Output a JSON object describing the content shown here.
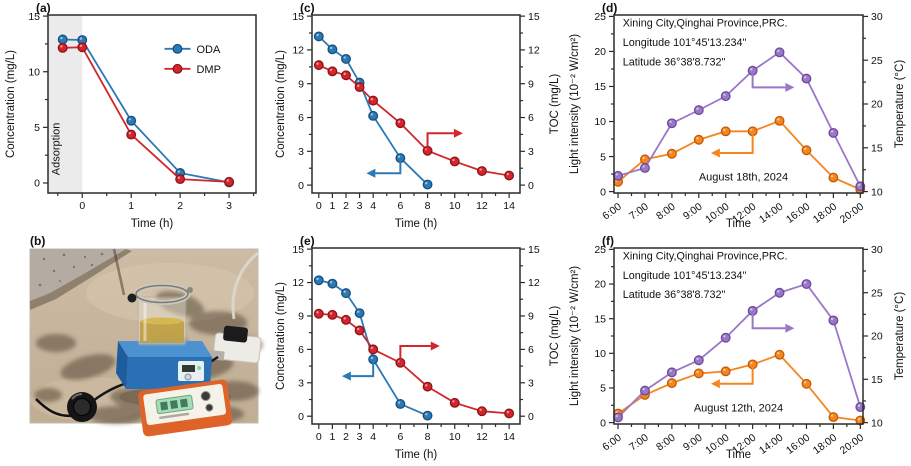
{
  "colors": {
    "blue": "#2b79b5",
    "blue_d": "#174f7c",
    "red": "#d3262c",
    "red_d": "#8c1318",
    "purple": "#9b77c8",
    "purple_d": "#6b4a9b",
    "orange": "#f5861f",
    "orange_d": "#c05c08",
    "axis": "#2b2b2b",
    "text": "#111111",
    "shade": "#ebebeb"
  },
  "photo": {
    "label": "(b)"
  },
  "chart_data": [
    {
      "id": "a",
      "type": "line",
      "panel_label": "(a)",
      "xlabel": "Time (h)",
      "ylabel": "Concentration (mg/L)",
      "xlim": [
        -0.7,
        3.55
      ],
      "ylim": [
        -0.9,
        15.1
      ],
      "margin": {
        "l": 46,
        "r": 14
      },
      "xticks": [
        {
          "v": 0,
          "l": "0"
        },
        {
          "v": 1,
          "l": "1"
        },
        {
          "v": 2,
          "l": "2"
        },
        {
          "v": 3,
          "l": "3"
        }
      ],
      "xminor": [
        -0.5,
        0.5,
        1.5,
        2.5,
        3.5
      ],
      "yticks": [
        0,
        5,
        10,
        15
      ],
      "yminor": [
        2.5,
        7.5,
        12.5
      ],
      "shade": {
        "from": -0.7,
        "to": 0
      },
      "texts": [
        {
          "fx": 0.055,
          "fy": 0.9,
          "text": "Adsorption",
          "rotate": -90,
          "anchor": "start",
          "size": 11
        }
      ],
      "legend": {
        "fx": 0.56,
        "fy": 0.19,
        "entries": [
          {
            "label": "ODA",
            "color": "blue"
          },
          {
            "label": "DMP",
            "color": "red"
          }
        ]
      },
      "series": [
        {
          "name": "ODA",
          "color": "blue",
          "axis": "left",
          "x": [
            -0.4,
            0,
            1,
            2,
            3
          ],
          "y": [
            12.9,
            12.85,
            5.6,
            0.9,
            0.05
          ]
        },
        {
          "name": "DMP",
          "color": "red",
          "axis": "left",
          "x": [
            -0.4,
            0,
            1,
            2,
            3
          ],
          "y": [
            12.15,
            12.2,
            4.35,
            0.35,
            0.1
          ]
        }
      ]
    },
    {
      "id": "c",
      "type": "line",
      "panel_label": "(c)",
      "xlabel": "Time (h)",
      "ylabel": "Concentration (mg/L)",
      "y2label": "TOC (mg/L)",
      "xlim": [
        -0.5,
        14.8
      ],
      "ylim": [
        -0.7,
        15.1
      ],
      "ylim2": [
        -0.7,
        15.1
      ],
      "margin": {
        "l": 40,
        "r": 44
      },
      "xticks": [
        {
          "v": 0,
          "l": "0"
        },
        {
          "v": 1,
          "l": "1"
        },
        {
          "v": 2,
          "l": "2"
        },
        {
          "v": 3,
          "l": "3"
        },
        {
          "v": 4,
          "l": "4"
        },
        {
          "v": 6,
          "l": "6"
        },
        {
          "v": 8,
          "l": "8"
        },
        {
          "v": 10,
          "l": "10"
        },
        {
          "v": 12,
          "l": "12"
        },
        {
          "v": 14,
          "l": "14"
        }
      ],
      "xminor": [
        5,
        7,
        9,
        11,
        13
      ],
      "yticks": [
        0,
        3,
        6,
        9,
        12,
        15
      ],
      "yminor": [
        1.5,
        4.5,
        7.5,
        10.5,
        13.5
      ],
      "y2ticks": [
        0,
        3,
        6,
        9,
        12,
        15
      ],
      "y2minor": [
        1.5,
        4.5,
        7.5,
        10.5,
        13.5
      ],
      "arrows": [
        {
          "color": "blue",
          "axis": "left",
          "pts": [
            [
              6,
              2.4
            ],
            [
              6,
              1.05
            ],
            [
              3.5,
              1.05
            ]
          ]
        },
        {
          "color": "red",
          "axis": "left",
          "pts": [
            [
              8,
              3.05
            ],
            [
              8,
              4.6
            ],
            [
              10.6,
              4.6
            ]
          ]
        }
      ],
      "series": [
        {
          "name": "Concentration",
          "color": "blue",
          "axis": "left",
          "x": [
            0,
            1,
            2,
            3,
            4,
            6,
            8
          ],
          "y": [
            13.2,
            12.05,
            11.2,
            9.1,
            6.15,
            2.4,
            0.05
          ]
        },
        {
          "name": "TOC",
          "color": "red",
          "axis": "right",
          "x": [
            0,
            1,
            2,
            3,
            4,
            6,
            8,
            10,
            12,
            14
          ],
          "y": [
            10.65,
            10.1,
            9.75,
            8.7,
            7.5,
            5.5,
            3.05,
            2.1,
            1.25,
            0.85
          ]
        }
      ]
    },
    {
      "id": "d",
      "type": "line",
      "panel_label": "(d)",
      "xlabel": "Time",
      "ylabel": "Light intensity (10⁻² W/cm²)",
      "y2label": "Temperature (°C)",
      "xlim": [
        -0.15,
        9.1
      ],
      "ylim": [
        -0.2,
        25.2
      ],
      "ylim2": [
        9.84,
        30.16
      ],
      "margin": {
        "l": 48,
        "r": 46
      },
      "rotate_xticks": true,
      "xticks": [
        {
          "v": 0,
          "l": "6:00"
        },
        {
          "v": 1,
          "l": "7:00"
        },
        {
          "v": 2,
          "l": "8:00"
        },
        {
          "v": 3,
          "l": "9:00"
        },
        {
          "v": 4,
          "l": "10:00"
        },
        {
          "v": 5,
          "l": "12:00"
        },
        {
          "v": 6,
          "l": "14:00"
        },
        {
          "v": 7,
          "l": "16:00"
        },
        {
          "v": 8,
          "l": "18:00"
        },
        {
          "v": 9,
          "l": "20:00"
        }
      ],
      "xminor": [
        0.5,
        1.5,
        2.5,
        3.5,
        4.5,
        5.5,
        6.5,
        7.5,
        8.5
      ],
      "yticks": [
        0,
        5,
        10,
        15,
        20,
        25
      ],
      "yminor": [
        2.5,
        7.5,
        12.5,
        17.5,
        22.5
      ],
      "y2ticks": [
        10,
        15,
        20,
        25,
        30
      ],
      "y2minor": [
        12.5,
        17.5,
        22.5,
        27.5
      ],
      "texts": [
        {
          "fx": 0.035,
          "fy": 0.065,
          "text": "Xining City,Qinghai Province,PRC.",
          "size": 10.8
        },
        {
          "fx": 0.035,
          "fy": 0.175,
          "text": "Longitude 101°45'13.234\"",
          "size": 10.8
        },
        {
          "fx": 0.035,
          "fy": 0.285,
          "text": "Latitude 36°38'8.732\"",
          "size": 10.8
        },
        {
          "fx": 0.52,
          "fy": 0.93,
          "text": "August 18th, 2024",
          "anchor": "middle",
          "size": 11
        }
      ],
      "arrows": [
        {
          "color": "orange",
          "axis": "left",
          "pts": [
            [
              5,
              8.6
            ],
            [
              5,
              5.5
            ],
            [
              3.45,
              5.5
            ]
          ]
        },
        {
          "color": "purple",
          "axis": "right",
          "pts": [
            [
              5,
              23.8
            ],
            [
              5,
              21.9
            ],
            [
              6.55,
              21.9
            ]
          ]
        }
      ],
      "series": [
        {
          "name": "Light intensity",
          "color": "orange",
          "axis": "left",
          "x": [
            0,
            1,
            2,
            3,
            4,
            5,
            6,
            7,
            8,
            9
          ],
          "y": [
            1.4,
            4.6,
            5.4,
            7.4,
            8.6,
            8.6,
            10.1,
            5.9,
            2.0,
            0.3
          ]
        },
        {
          "name": "Temperature",
          "color": "purple",
          "axis": "right",
          "x": [
            0,
            1,
            2,
            3,
            4,
            5,
            6,
            7,
            8,
            9
          ],
          "y": [
            11.8,
            12.7,
            17.8,
            19.3,
            20.9,
            23.8,
            25.9,
            22.9,
            16.7,
            10.6
          ]
        }
      ]
    },
    {
      "id": "e",
      "type": "line",
      "panel_label": "(e)",
      "xlabel": "Time (h)",
      "ylabel": "Concentration (mg/L)",
      "y2label": "TOC (mg/L)",
      "xlim": [
        -0.5,
        14.8
      ],
      "ylim": [
        -0.7,
        15.1
      ],
      "ylim2": [
        -0.7,
        15.1
      ],
      "margin": {
        "l": 40,
        "r": 44
      },
      "xticks": [
        {
          "v": 0,
          "l": "0"
        },
        {
          "v": 1,
          "l": "1"
        },
        {
          "v": 2,
          "l": "2"
        },
        {
          "v": 3,
          "l": "3"
        },
        {
          "v": 4,
          "l": "4"
        },
        {
          "v": 6,
          "l": "6"
        },
        {
          "v": 8,
          "l": "8"
        },
        {
          "v": 10,
          "l": "10"
        },
        {
          "v": 12,
          "l": "12"
        },
        {
          "v": 14,
          "l": "14"
        }
      ],
      "xminor": [
        5,
        7,
        9,
        11,
        13
      ],
      "yticks": [
        0,
        3,
        6,
        9,
        12,
        15
      ],
      "yminor": [
        1.5,
        4.5,
        7.5,
        10.5,
        13.5
      ],
      "y2ticks": [
        0,
        3,
        6,
        9,
        12,
        15
      ],
      "y2minor": [
        1.5,
        4.5,
        7.5,
        10.5,
        13.5
      ],
      "arrows": [
        {
          "color": "blue",
          "axis": "left",
          "pts": [
            [
              4,
              5.1
            ],
            [
              4,
              3.6
            ],
            [
              1.7,
              3.6
            ]
          ]
        },
        {
          "color": "red",
          "axis": "left",
          "pts": [
            [
              6,
              4.8
            ],
            [
              6,
              6.3
            ],
            [
              8.9,
              6.3
            ]
          ]
        }
      ],
      "series": [
        {
          "name": "Concentration",
          "color": "blue",
          "axis": "left",
          "x": [
            0,
            1,
            2,
            3,
            4,
            6,
            8
          ],
          "y": [
            12.2,
            11.9,
            11.05,
            9.25,
            5.1,
            1.1,
            0.05
          ]
        },
        {
          "name": "TOC",
          "color": "red",
          "axis": "right",
          "x": [
            0,
            1,
            2,
            3,
            4,
            6,
            8,
            10,
            12,
            14
          ],
          "y": [
            9.2,
            9.1,
            8.65,
            7.7,
            6.0,
            4.8,
            2.65,
            1.2,
            0.45,
            0.25
          ]
        }
      ]
    },
    {
      "id": "f",
      "type": "line",
      "panel_label": "(f)",
      "xlabel": "Time",
      "ylabel": "Light intensity (10⁻² W/cm²)",
      "y2label": "Temperature (°C)",
      "xlim": [
        -0.15,
        9.1
      ],
      "ylim": [
        -0.2,
        25.2
      ],
      "ylim2": [
        9.84,
        30.16
      ],
      "margin": {
        "l": 48,
        "r": 46
      },
      "rotate_xticks": true,
      "xticks": [
        {
          "v": 0,
          "l": "6:00"
        },
        {
          "v": 1,
          "l": "7:00"
        },
        {
          "v": 2,
          "l": "8:00"
        },
        {
          "v": 3,
          "l": "9:00"
        },
        {
          "v": 4,
          "l": "10:00"
        },
        {
          "v": 5,
          "l": "12:00"
        },
        {
          "v": 6,
          "l": "14:00"
        },
        {
          "v": 7,
          "l": "16:00"
        },
        {
          "v": 8,
          "l": "18:00"
        },
        {
          "v": 9,
          "l": "20:00"
        }
      ],
      "xminor": [
        0.5,
        1.5,
        2.5,
        3.5,
        4.5,
        5.5,
        6.5,
        7.5,
        8.5
      ],
      "yticks": [
        0,
        5,
        10,
        15,
        20,
        25
      ],
      "yminor": [
        2.5,
        7.5,
        12.5,
        17.5,
        22.5
      ],
      "y2ticks": [
        10,
        15,
        20,
        25,
        30
      ],
      "y2minor": [
        12.5,
        17.5,
        22.5,
        27.5
      ],
      "texts": [
        {
          "fx": 0.035,
          "fy": 0.065,
          "text": "Xining City,Qinghai Province,PRC.",
          "size": 10.8
        },
        {
          "fx": 0.035,
          "fy": 0.175,
          "text": "Longitude 101°45'13.234\"",
          "size": 10.8
        },
        {
          "fx": 0.035,
          "fy": 0.285,
          "text": "Latitude 36°38'8.732\"",
          "size": 10.8
        },
        {
          "fx": 0.5,
          "fy": 0.93,
          "text": "August 12th, 2024",
          "anchor": "middle",
          "size": 11
        }
      ],
      "arrows": [
        {
          "color": "orange",
          "axis": "left",
          "pts": [
            [
              5,
              8.4
            ],
            [
              5,
              5.6
            ],
            [
              3.45,
              5.6
            ]
          ]
        },
        {
          "color": "purple",
          "axis": "right",
          "pts": [
            [
              5,
              22.9
            ],
            [
              5,
              20.9
            ],
            [
              6.55,
              20.9
            ]
          ]
        }
      ],
      "series": [
        {
          "name": "Light intensity",
          "color": "orange",
          "axis": "left",
          "x": [
            0,
            1,
            2,
            3,
            4,
            5,
            6,
            7,
            8,
            9
          ],
          "y": [
            1.3,
            4.0,
            5.7,
            7.1,
            7.4,
            8.4,
            9.8,
            5.6,
            0.8,
            0.3
          ]
        },
        {
          "name": "Temperature",
          "color": "purple",
          "axis": "right",
          "x": [
            0,
            1,
            2,
            3,
            4,
            5,
            6,
            7,
            8,
            9
          ],
          "y": [
            10.6,
            13.7,
            15.8,
            17.2,
            19.8,
            22.9,
            25.0,
            26.0,
            21.8,
            11.8
          ]
        }
      ]
    }
  ]
}
